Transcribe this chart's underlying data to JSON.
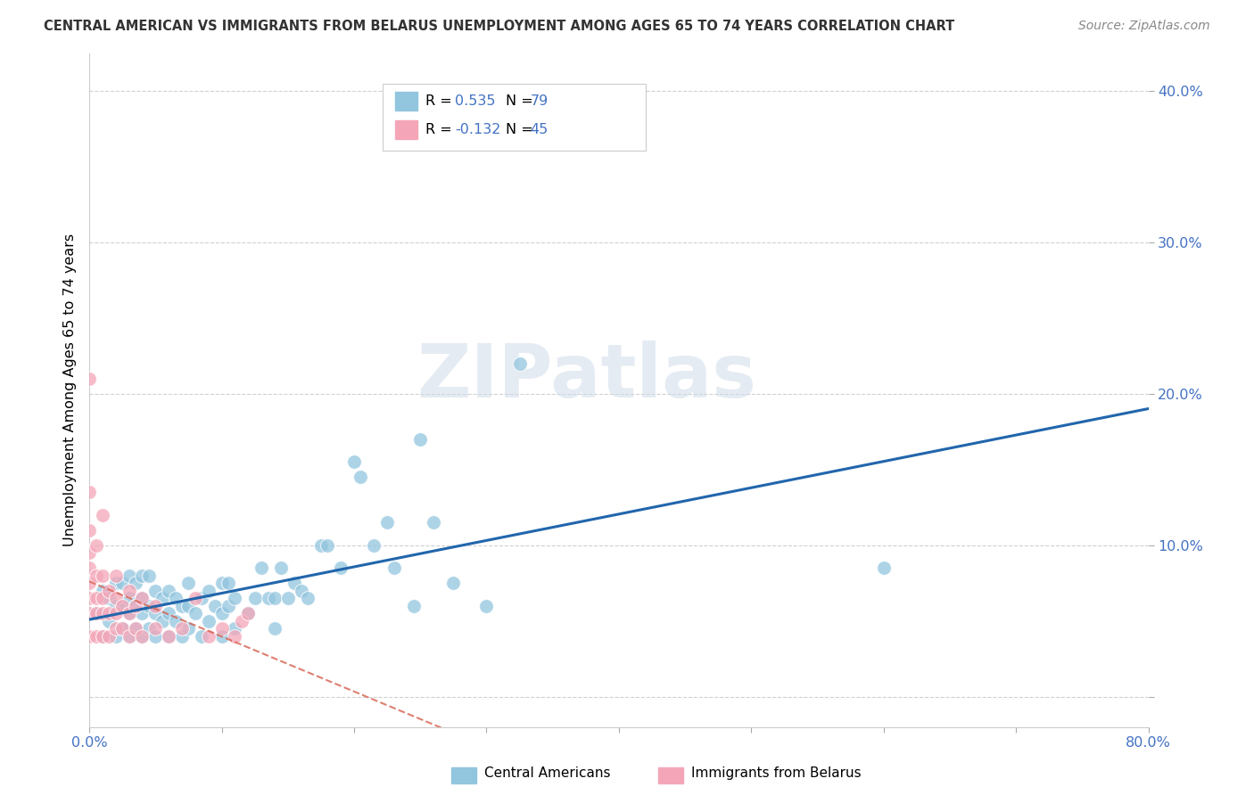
{
  "title": "CENTRAL AMERICAN VS IMMIGRANTS FROM BELARUS UNEMPLOYMENT AMONG AGES 65 TO 74 YEARS CORRELATION CHART",
  "source": "Source: ZipAtlas.com",
  "ylabel": "Unemployment Among Ages 65 to 74 years",
  "xlim": [
    0.0,
    0.8
  ],
  "ylim": [
    -0.02,
    0.425
  ],
  "xticks": [
    0.0,
    0.1,
    0.2,
    0.3,
    0.4,
    0.5,
    0.6,
    0.7,
    0.8
  ],
  "xticklabels": [
    "0.0%",
    "",
    "",
    "",
    "",
    "",
    "",
    "",
    "80.0%"
  ],
  "yticks": [
    0.0,
    0.1,
    0.2,
    0.3,
    0.4
  ],
  "yticklabels": [
    "",
    "10.0%",
    "20.0%",
    "30.0%",
    "40.0%"
  ],
  "blue_color": "#92c5de",
  "pink_color": "#f4a6b8",
  "blue_line_color": "#2166ac",
  "pink_line_color": "#d6604d",
  "legend_label1": "Central Americans",
  "legend_label2": "Immigrants from Belarus",
  "watermark": "ZIPatlas",
  "blue_x": [
    0.005,
    0.01,
    0.01,
    0.015,
    0.015,
    0.02,
    0.02,
    0.02,
    0.025,
    0.025,
    0.025,
    0.03,
    0.03,
    0.03,
    0.03,
    0.035,
    0.035,
    0.035,
    0.04,
    0.04,
    0.04,
    0.04,
    0.045,
    0.045,
    0.045,
    0.05,
    0.05,
    0.05,
    0.055,
    0.055,
    0.06,
    0.06,
    0.06,
    0.065,
    0.065,
    0.07,
    0.07,
    0.075,
    0.075,
    0.075,
    0.08,
    0.085,
    0.085,
    0.09,
    0.09,
    0.095,
    0.1,
    0.1,
    0.1,
    0.105,
    0.105,
    0.11,
    0.11,
    0.12,
    0.125,
    0.13,
    0.135,
    0.14,
    0.14,
    0.145,
    0.15,
    0.155,
    0.16,
    0.165,
    0.175,
    0.18,
    0.19,
    0.2,
    0.205,
    0.215,
    0.225,
    0.23,
    0.245,
    0.25,
    0.26,
    0.275,
    0.3,
    0.325,
    0.6
  ],
  "blue_y": [
    0.055,
    0.04,
    0.07,
    0.05,
    0.065,
    0.04,
    0.06,
    0.075,
    0.045,
    0.06,
    0.075,
    0.04,
    0.055,
    0.065,
    0.08,
    0.045,
    0.06,
    0.075,
    0.04,
    0.055,
    0.065,
    0.08,
    0.045,
    0.06,
    0.08,
    0.04,
    0.055,
    0.07,
    0.05,
    0.065,
    0.04,
    0.055,
    0.07,
    0.05,
    0.065,
    0.04,
    0.06,
    0.045,
    0.06,
    0.075,
    0.055,
    0.04,
    0.065,
    0.05,
    0.07,
    0.06,
    0.04,
    0.055,
    0.075,
    0.06,
    0.075,
    0.045,
    0.065,
    0.055,
    0.065,
    0.085,
    0.065,
    0.045,
    0.065,
    0.085,
    0.065,
    0.075,
    0.07,
    0.065,
    0.1,
    0.1,
    0.085,
    0.155,
    0.145,
    0.1,
    0.115,
    0.085,
    0.06,
    0.17,
    0.115,
    0.075,
    0.06,
    0.22,
    0.085
  ],
  "pink_x": [
    0.0,
    0.0,
    0.0,
    0.0,
    0.0,
    0.0,
    0.0,
    0.0,
    0.0,
    0.005,
    0.005,
    0.005,
    0.005,
    0.005,
    0.01,
    0.01,
    0.01,
    0.01,
    0.01,
    0.015,
    0.015,
    0.015,
    0.02,
    0.02,
    0.02,
    0.02,
    0.025,
    0.025,
    0.03,
    0.03,
    0.03,
    0.035,
    0.035,
    0.04,
    0.04,
    0.05,
    0.05,
    0.06,
    0.07,
    0.08,
    0.09,
    0.1,
    0.11,
    0.115,
    0.12
  ],
  "pink_y": [
    0.04,
    0.055,
    0.065,
    0.075,
    0.085,
    0.095,
    0.11,
    0.135,
    0.21,
    0.04,
    0.055,
    0.065,
    0.08,
    0.1,
    0.04,
    0.055,
    0.065,
    0.08,
    0.12,
    0.04,
    0.055,
    0.07,
    0.045,
    0.055,
    0.065,
    0.08,
    0.045,
    0.06,
    0.04,
    0.055,
    0.07,
    0.045,
    0.06,
    0.04,
    0.065,
    0.045,
    0.06,
    0.04,
    0.045,
    0.065,
    0.04,
    0.045,
    0.04,
    0.05,
    0.055
  ],
  "background_color": "#ffffff",
  "grid_color": "#d0d0d0",
  "title_color": "#333333",
  "axis_color": "#4472c4",
  "r1": "0.535",
  "n1": "79",
  "r2": "-0.132",
  "n2": "45"
}
